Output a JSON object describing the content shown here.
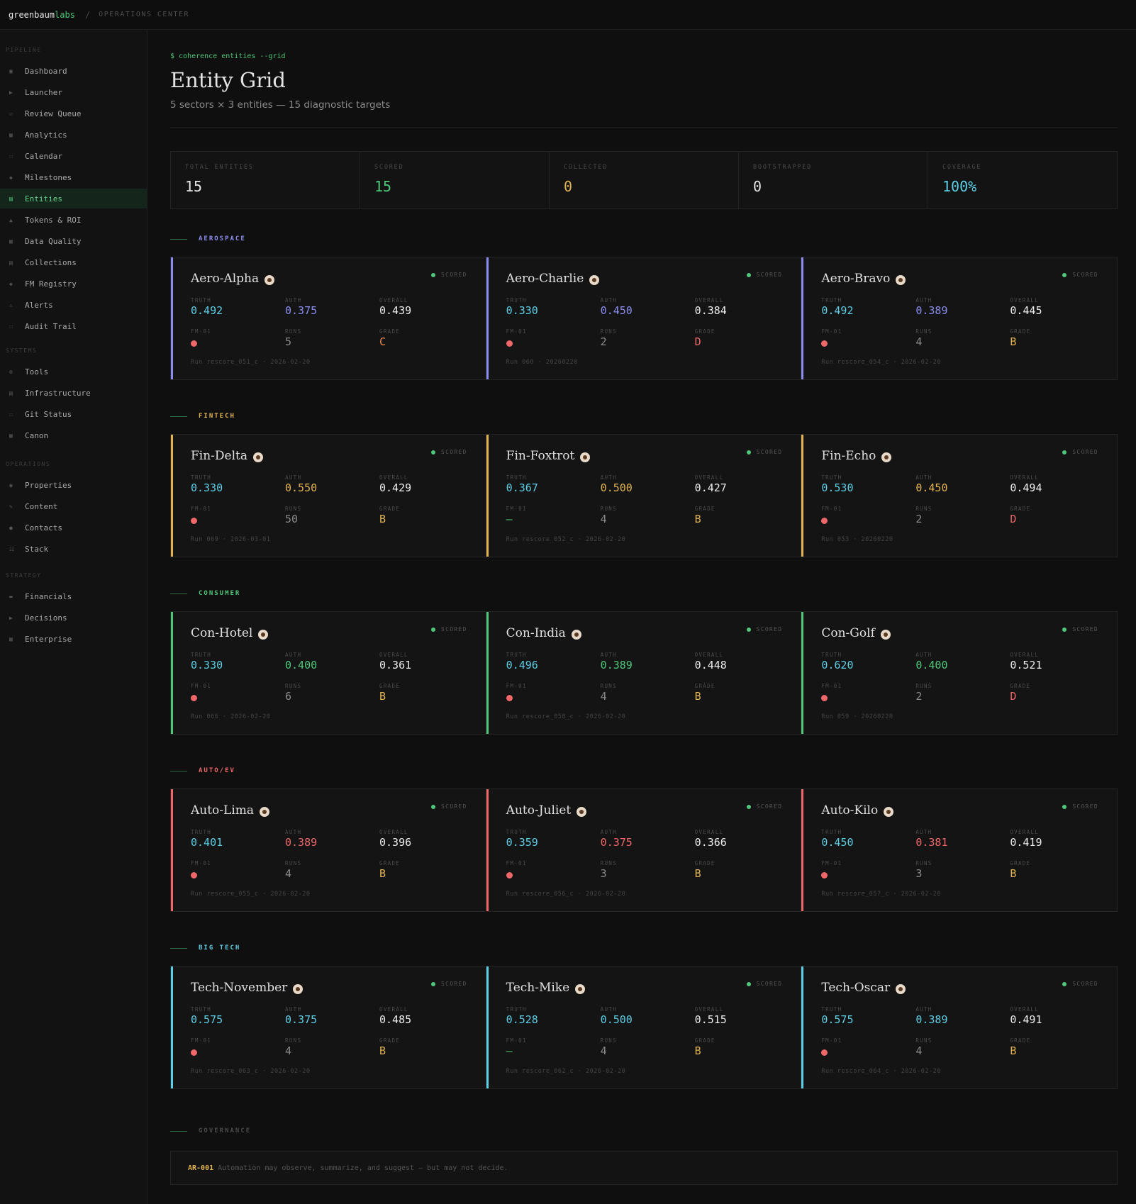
{
  "brand": {
    "part1": "greenbaum",
    "part2": "labs",
    "separator": "/",
    "context": "OPERATIONS CENTER"
  },
  "sidebar": {
    "groups": [
      {
        "label": "PIPELINE",
        "items": [
          {
            "label": "Dashboard",
            "icon": "grid-icon",
            "glyph": "▣"
          },
          {
            "label": "Launcher",
            "icon": "play-icon",
            "glyph": "▶"
          },
          {
            "label": "Review Queue",
            "icon": "checkbox-icon",
            "glyph": "☑"
          },
          {
            "label": "Analytics",
            "icon": "bar-chart-icon",
            "glyph": "▦"
          },
          {
            "label": "Calendar",
            "icon": "calendar-icon",
            "glyph": "☐"
          },
          {
            "label": "Milestones",
            "icon": "diamond-icon",
            "glyph": "◆"
          },
          {
            "label": "Entities",
            "icon": "table-icon",
            "glyph": "▤",
            "active": true
          },
          {
            "label": "Tokens & ROI",
            "icon": "triangle-icon",
            "glyph": "▲"
          },
          {
            "label": "Data Quality",
            "icon": "square-icon",
            "glyph": "▦"
          },
          {
            "label": "Collections",
            "icon": "stack-icon",
            "glyph": "▤"
          },
          {
            "label": "FM Registry",
            "icon": "diamond-icon",
            "glyph": "◆"
          },
          {
            "label": "Alerts",
            "icon": "warning-icon",
            "glyph": "⚠"
          },
          {
            "label": "Audit Trail",
            "icon": "file-icon",
            "glyph": "☐"
          }
        ]
      },
      {
        "label": "SYSTEMS",
        "items": [
          {
            "label": "Tools",
            "icon": "gear-icon",
            "glyph": "⚙"
          },
          {
            "label": "Infrastructure",
            "icon": "server-icon",
            "glyph": "▤"
          },
          {
            "label": "Git Status",
            "icon": "branch-icon",
            "glyph": "☐"
          },
          {
            "label": "Canon",
            "icon": "book-icon",
            "glyph": "▦"
          }
        ]
      },
      {
        "label": "OPERATIONS",
        "items": [
          {
            "label": "Properties",
            "icon": "circle-icon",
            "glyph": "◉"
          },
          {
            "label": "Content",
            "icon": "pen-icon",
            "glyph": "✎"
          },
          {
            "label": "Contacts",
            "icon": "person-icon",
            "glyph": "●"
          },
          {
            "label": "Stack",
            "icon": "layers-icon",
            "glyph": "☷"
          }
        ]
      },
      {
        "label": "STRATEGY",
        "items": [
          {
            "label": "Financials",
            "icon": "money-icon",
            "glyph": "▬"
          },
          {
            "label": "Decisions",
            "icon": "arrow-icon",
            "glyph": "▶"
          },
          {
            "label": "Enterprise",
            "icon": "building-icon",
            "glyph": "▦"
          }
        ]
      }
    ]
  },
  "header": {
    "command": "$ coherence entities --grid",
    "title": "Entity Grid",
    "subtitle": "5 sectors × 3 entities — 15 diagnostic targets"
  },
  "stats": [
    {
      "label": "TOTAL ENTITIES",
      "value": "15",
      "color": "#e6e6e6"
    },
    {
      "label": "SCORED",
      "value": "15",
      "color": "#4ec77a"
    },
    {
      "label": "COLLECTED",
      "value": "0",
      "color": "#e1b351"
    },
    {
      "label": "BOOTSTRAPPED",
      "value": "0",
      "color": "#e6e6e6"
    },
    {
      "label": "COVERAGE",
      "value": "100%",
      "color": "#5ccfe6"
    }
  ],
  "labels": {
    "truth": "TRUTH",
    "auth": "AUTH",
    "overall": "OVERALL",
    "fm": "FM-01",
    "runs": "RUNS",
    "grade": "GRADE",
    "fm_none": "—"
  },
  "colors": {
    "truth": "#5ccfe6",
    "grade_b": "#e1b351",
    "grade_d": "#f0676a",
    "grade_c": "#f08a4b",
    "fm_dot": "#f0676a",
    "scored_dot": "#4ec77a"
  },
  "sectors": [
    {
      "name": "AEROSPACE",
      "color": "#8a8cf0",
      "entities": [
        {
          "name": "Aero-Alpha",
          "status": "SCORED",
          "truth": "0.492",
          "auth": "0.375",
          "overall": "0.439",
          "fm": "dot",
          "runs": "5",
          "grade": "C",
          "run": "Run rescore_051_c · 2026-02-20"
        },
        {
          "name": "Aero-Charlie",
          "status": "SCORED",
          "truth": "0.330",
          "auth": "0.450",
          "overall": "0.384",
          "fm": "dot",
          "runs": "2",
          "grade": "D",
          "run": "Run 060 · 20260220"
        },
        {
          "name": "Aero-Bravo",
          "status": "SCORED",
          "truth": "0.492",
          "auth": "0.389",
          "overall": "0.445",
          "fm": "dot",
          "runs": "4",
          "grade": "B",
          "run": "Run rescore_054_c · 2026-02-20"
        }
      ]
    },
    {
      "name": "FINTECH",
      "color": "#e1b351",
      "entities": [
        {
          "name": "Fin-Delta",
          "status": "SCORED",
          "truth": "0.330",
          "auth": "0.550",
          "overall": "0.429",
          "fm": "dot",
          "runs": "50",
          "grade": "B",
          "run": "Run 069 · 2026-03-01"
        },
        {
          "name": "Fin-Foxtrot",
          "status": "SCORED",
          "truth": "0.367",
          "auth": "0.500",
          "overall": "0.427",
          "fm": "dash",
          "runs": "4",
          "grade": "B",
          "run": "Run rescore_052_c · 2026-02-20"
        },
        {
          "name": "Fin-Echo",
          "status": "SCORED",
          "truth": "0.530",
          "auth": "0.450",
          "overall": "0.494",
          "fm": "dot",
          "runs": "2",
          "grade": "D",
          "run": "Run 053 · 20260220"
        }
      ]
    },
    {
      "name": "CONSUMER",
      "color": "#4ec77a",
      "entities": [
        {
          "name": "Con-Hotel",
          "status": "SCORED",
          "truth": "0.330",
          "auth": "0.400",
          "overall": "0.361",
          "fm": "dot",
          "runs": "6",
          "grade": "B",
          "run": "Run 066 · 2026-02-20"
        },
        {
          "name": "Con-India",
          "status": "SCORED",
          "truth": "0.496",
          "auth": "0.389",
          "overall": "0.448",
          "fm": "dot",
          "runs": "4",
          "grade": "B",
          "run": "Run rescore_058_c · 2026-02-20"
        },
        {
          "name": "Con-Golf",
          "status": "SCORED",
          "truth": "0.620",
          "auth": "0.400",
          "overall": "0.521",
          "fm": "dot",
          "runs": "2",
          "grade": "D",
          "run": "Run 059 · 20260220"
        }
      ]
    },
    {
      "name": "AUTO/EV",
      "color": "#f0676a",
      "entities": [
        {
          "name": "Auto-Lima",
          "status": "SCORED",
          "truth": "0.401",
          "auth": "0.389",
          "overall": "0.396",
          "fm": "dot",
          "runs": "4",
          "grade": "B",
          "run": "Run rescore_055_c · 2026-02-20"
        },
        {
          "name": "Auto-Juliet",
          "status": "SCORED",
          "truth": "0.359",
          "auth": "0.375",
          "overall": "0.366",
          "fm": "dot",
          "runs": "3",
          "grade": "B",
          "run": "Run rescore_056_c · 2026-02-20"
        },
        {
          "name": "Auto-Kilo",
          "status": "SCORED",
          "truth": "0.450",
          "auth": "0.381",
          "overall": "0.419",
          "fm": "dot",
          "runs": "3",
          "grade": "B",
          "run": "Run rescore_057_c · 2026-02-20"
        }
      ]
    },
    {
      "name": "BIG TECH",
      "color": "#5ccfe6",
      "entities": [
        {
          "name": "Tech-November",
          "status": "SCORED",
          "truth": "0.575",
          "auth": "0.375",
          "overall": "0.485",
          "fm": "dot",
          "runs": "4",
          "grade": "B",
          "run": "Run rescore_063_c · 2026-02-20"
        },
        {
          "name": "Tech-Mike",
          "status": "SCORED",
          "truth": "0.528",
          "auth": "0.500",
          "overall": "0.515",
          "fm": "dash",
          "runs": "4",
          "grade": "B",
          "run": "Run rescore_062_c · 2026-02-20"
        },
        {
          "name": "Tech-Oscar",
          "status": "SCORED",
          "truth": "0.575",
          "auth": "0.389",
          "overall": "0.491",
          "fm": "dot",
          "runs": "4",
          "grade": "B",
          "run": "Run rescore_064_c · 2026-02-20"
        }
      ]
    }
  ],
  "governance": {
    "label": "GOVERNANCE",
    "code": "AR-001",
    "text": "Automation may observe, summarize, and suggest — but may not decide."
  }
}
